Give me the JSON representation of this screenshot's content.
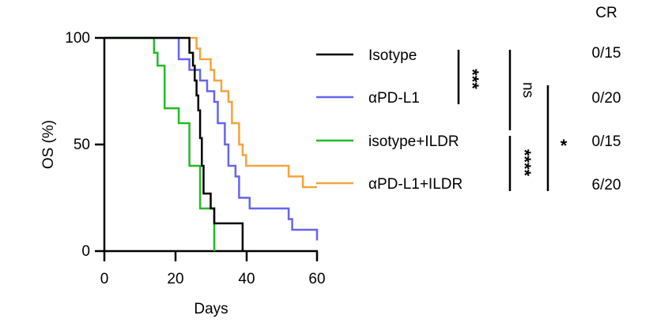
{
  "chart_data": {
    "type": "line",
    "step": true,
    "xlabel": "Days",
    "ylabel": "OS (%)",
    "xlim": [
      0,
      60
    ],
    "ylim": [
      0,
      100
    ],
    "xticks": [
      0,
      20,
      40,
      60
    ],
    "yticks": [
      0,
      50,
      100
    ],
    "grid": false,
    "legend_placement": "right",
    "series": [
      {
        "name": "Isotype",
        "color": "#000000",
        "cr": "0/15",
        "points": [
          [
            0,
            100
          ],
          [
            24,
            100
          ],
          [
            24,
            93
          ],
          [
            25,
            93
          ],
          [
            25,
            87
          ],
          [
            25.5,
            87
          ],
          [
            25.5,
            80
          ],
          [
            26,
            80
          ],
          [
            26,
            73
          ],
          [
            26.5,
            73
          ],
          [
            26.5,
            66
          ],
          [
            27,
            66
          ],
          [
            27,
            53
          ],
          [
            27.5,
            53
          ],
          [
            27.5,
            40
          ],
          [
            28,
            40
          ],
          [
            28,
            27
          ],
          [
            30,
            27
          ],
          [
            30,
            20
          ],
          [
            31,
            20
          ],
          [
            31,
            13
          ],
          [
            39,
            13
          ],
          [
            39,
            0
          ]
        ]
      },
      {
        "name": "αPD-L1",
        "color": "#6464f0",
        "cr": "0/20",
        "points": [
          [
            0,
            100
          ],
          [
            21,
            100
          ],
          [
            21,
            90
          ],
          [
            24,
            90
          ],
          [
            24,
            85
          ],
          [
            27,
            85
          ],
          [
            27,
            80
          ],
          [
            29,
            80
          ],
          [
            29,
            75
          ],
          [
            31,
            75
          ],
          [
            31,
            70
          ],
          [
            32,
            70
          ],
          [
            32,
            60
          ],
          [
            34,
            60
          ],
          [
            34,
            50
          ],
          [
            35,
            50
          ],
          [
            35,
            40
          ],
          [
            37,
            40
          ],
          [
            37,
            35
          ],
          [
            38,
            35
          ],
          [
            38,
            25
          ],
          [
            41,
            25
          ],
          [
            41,
            20
          ],
          [
            52,
            20
          ],
          [
            52,
            15
          ],
          [
            53,
            15
          ],
          [
            53,
            10
          ],
          [
            60,
            10
          ],
          [
            60,
            5
          ]
        ]
      },
      {
        "name": "isotype+ILDR",
        "color": "#22bb22",
        "cr": "0/15",
        "points": [
          [
            0,
            100
          ],
          [
            14,
            100
          ],
          [
            14,
            93
          ],
          [
            15,
            93
          ],
          [
            15,
            87
          ],
          [
            17,
            87
          ],
          [
            17,
            67
          ],
          [
            21,
            67
          ],
          [
            21,
            60
          ],
          [
            24,
            60
          ],
          [
            24,
            40
          ],
          [
            25,
            40
          ],
          [
            25,
            40
          ],
          [
            27,
            40
          ],
          [
            27,
            20
          ],
          [
            30,
            20
          ],
          [
            30,
            20
          ],
          [
            31,
            20
          ],
          [
            31,
            0
          ]
        ]
      },
      {
        "name": "αPD-L1+ILDR",
        "color": "#f5a33b",
        "cr": "6/20",
        "points": [
          [
            0,
            100
          ],
          [
            26,
            100
          ],
          [
            26,
            95
          ],
          [
            27,
            95
          ],
          [
            27,
            90
          ],
          [
            30,
            90
          ],
          [
            30,
            85
          ],
          [
            31,
            85
          ],
          [
            31,
            80
          ],
          [
            33,
            80
          ],
          [
            33,
            75
          ],
          [
            35,
            75
          ],
          [
            35,
            70
          ],
          [
            36,
            70
          ],
          [
            36,
            60
          ],
          [
            38,
            60
          ],
          [
            38,
            50
          ],
          [
            39,
            50
          ],
          [
            39,
            45
          ],
          [
            40,
            45
          ],
          [
            40,
            40
          ],
          [
            52,
            40
          ],
          [
            52,
            35
          ],
          [
            56,
            35
          ],
          [
            56,
            30
          ],
          [
            60,
            30
          ]
        ]
      }
    ],
    "annotations": {
      "cr_header": "CR",
      "sig_isotype_vs_apdl1": "***",
      "sig_isotype_vs_combo": "ns",
      "sig_ildr_vs_combo": "****",
      "sig_apdl1_vs_combo": "*"
    }
  }
}
